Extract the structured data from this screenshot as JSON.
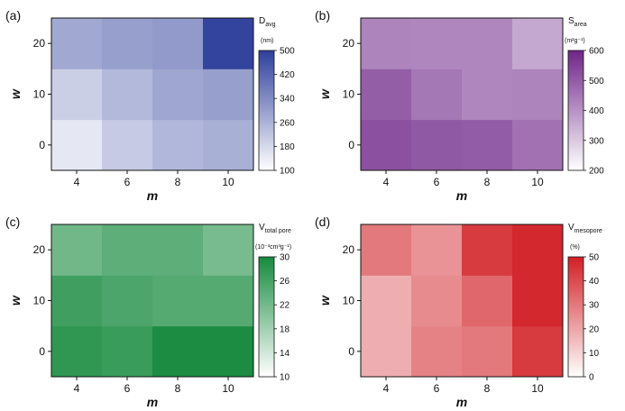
{
  "chart_data": [
    {
      "type": "heatmap",
      "panel_label": "(a)",
      "xlabel": "m",
      "ylabel": "w",
      "x": [
        4,
        6,
        8,
        10
      ],
      "y": [
        0,
        10,
        20
      ],
      "values": [
        [
          150,
          210,
          250,
          265
        ],
        [
          200,
          245,
          285,
          300
        ],
        [
          280,
          300,
          310,
          490
        ]
      ],
      "colorbar": {
        "title_main": "D",
        "title_sub": "avg",
        "units": "(nm)",
        "ticks": [
          100,
          180,
          260,
          340,
          420,
          500
        ],
        "range": [
          100,
          500
        ],
        "color_min": "#ffffff",
        "color_max": "#2e3f9b"
      }
    },
    {
      "type": "heatmap",
      "panel_label": "(b)",
      "xlabel": "m",
      "ylabel": "w",
      "x": [
        4,
        6,
        8,
        10
      ],
      "y": [
        0,
        10,
        20
      ],
      "values": [
        [
          520,
          505,
          500,
          460
        ],
        [
          495,
          450,
          420,
          425
        ],
        [
          425,
          420,
          420,
          360
        ]
      ],
      "colorbar": {
        "title_main": "S",
        "title_sub": "area",
        "units": "(m²g⁻¹)",
        "ticks": [
          200,
          300,
          400,
          500,
          600
        ],
        "range": [
          200,
          600
        ],
        "color_min": "#ffffff",
        "color_max": "#6e2588"
      }
    },
    {
      "type": "heatmap",
      "panel_label": "(c)",
      "xlabel": "m",
      "ylabel": "w",
      "x": [
        4,
        6,
        8,
        10
      ],
      "y": [
        0,
        10,
        20
      ],
      "values": [
        [
          27.8,
          27.0,
          29.6,
          29.6
        ],
        [
          26.4,
          25.4,
          24.6,
          24.6
        ],
        [
          22.2,
          23.8,
          23.8,
          21.6
        ]
      ],
      "colorbar": {
        "title_main": "V",
        "title_sub": "total pore",
        "units": "(10⁻³cm³g⁻¹)",
        "ticks": [
          10,
          14,
          18,
          22,
          26,
          30
        ],
        "range": [
          10,
          30
        ],
        "color_min": "#ffffff",
        "color_max": "#168a3d"
      }
    },
    {
      "type": "heatmap",
      "panel_label": "(d)",
      "xlabel": "m",
      "ylabel": "w",
      "x": [
        4,
        6,
        8,
        10
      ],
      "y": [
        0,
        10,
        20
      ],
      "values": [
        [
          18,
          28,
          30,
          44
        ],
        [
          18,
          26,
          34,
          48
        ],
        [
          30,
          24,
          44,
          48
        ]
      ],
      "colorbar": {
        "title_main": "V",
        "title_sub": "mesopore",
        "units": "(%)",
        "ticks": [
          0,
          10,
          20,
          30,
          40,
          50
        ],
        "range": [
          0,
          50
        ],
        "color_min": "#ffffff",
        "color_max": "#d11f25"
      }
    }
  ]
}
